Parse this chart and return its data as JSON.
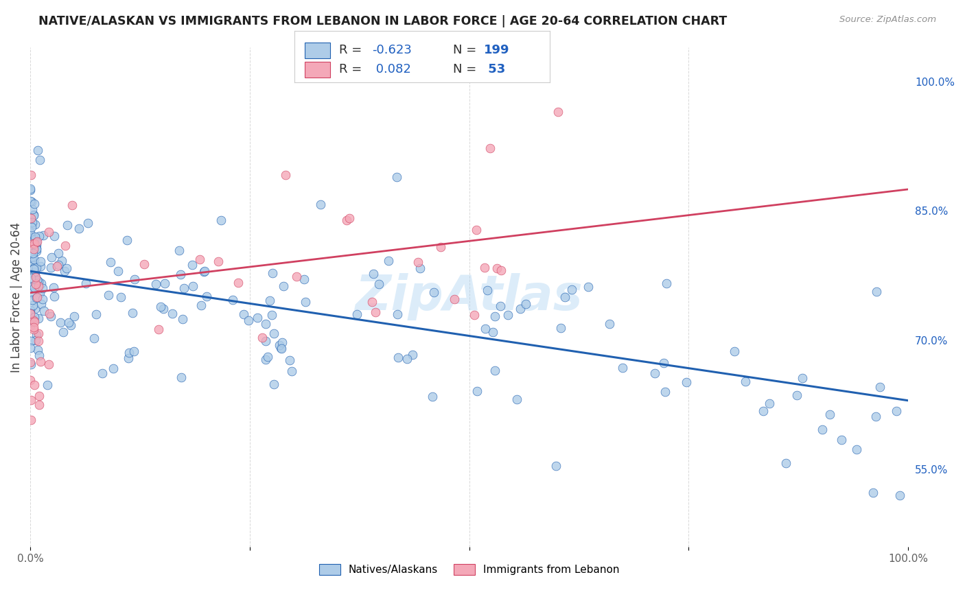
{
  "title": "NATIVE/ALASKAN VS IMMIGRANTS FROM LEBANON IN LABOR FORCE | AGE 20-64 CORRELATION CHART",
  "source": "Source: ZipAtlas.com",
  "ylabel": "In Labor Force | Age 20-64",
  "xlim": [
    0,
    1.0
  ],
  "ylim": [
    0.46,
    1.04
  ],
  "y_tick_values_right": [
    0.55,
    0.7,
    0.85,
    1.0
  ],
  "y_tick_labels_right": [
    "55.0%",
    "70.0%",
    "85.0%",
    "100.0%"
  ],
  "legend_r_native": "-0.623",
  "legend_n_native": "199",
  "legend_r_lebanon": "0.082",
  "legend_n_lebanon": "53",
  "native_color": "#aecce8",
  "lebanon_color": "#f4a8b8",
  "trendline_native_color": "#2060b0",
  "trendline_lebanon_color": "#d04060",
  "background_color": "#ffffff",
  "grid_color": "#d8d8d8",
  "title_color": "#202020",
  "axis_label_color": "#404040",
  "blue_text_color": "#2060c0",
  "source_color": "#909090",
  "watermark": "ZipAtlas",
  "native_trendline_x": [
    0.0,
    1.0
  ],
  "native_trendline_y": [
    0.78,
    0.63
  ],
  "lebanon_trendline_x": [
    0.0,
    1.0
  ],
  "lebanon_trendline_y": [
    0.755,
    0.875
  ]
}
